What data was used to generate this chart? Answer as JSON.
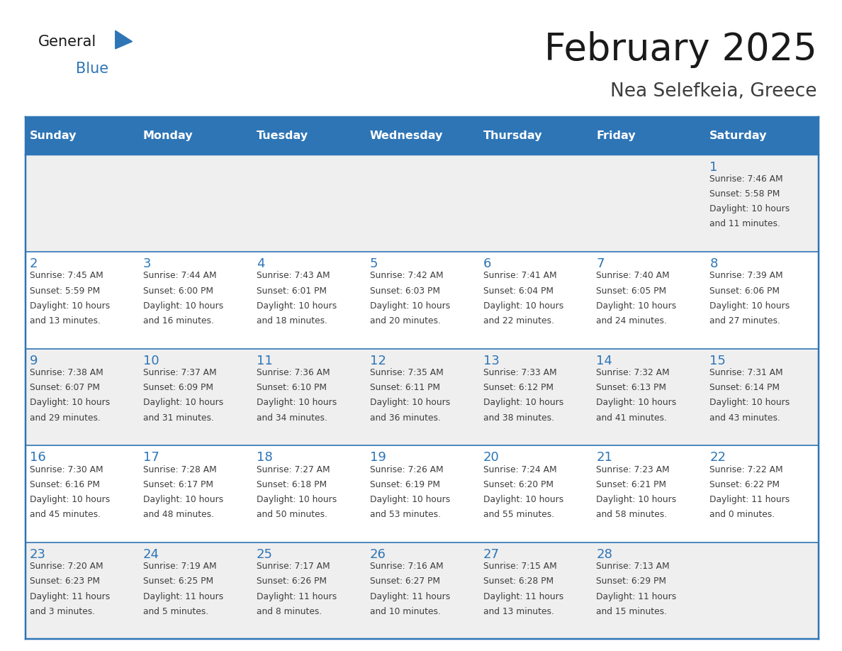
{
  "title": "February 2025",
  "subtitle": "Nea Selefkeia, Greece",
  "days_of_week": [
    "Sunday",
    "Monday",
    "Tuesday",
    "Wednesday",
    "Thursday",
    "Friday",
    "Saturday"
  ],
  "header_bg": "#2E75B6",
  "header_text_color": "#FFFFFF",
  "cell_bg_white": "#FFFFFF",
  "cell_bg_gray": "#EFEFEF",
  "border_color": "#2E75B6",
  "day_number_color": "#2E75B6",
  "info_text_color": "#3D3D3D",
  "title_color": "#1A1A1A",
  "subtitle_color": "#3D3D3D",
  "logo_general_color": "#1A1A1A",
  "logo_blue_color": "#2E75B6",
  "calendar_data": [
    [
      null,
      null,
      null,
      null,
      null,
      null,
      {
        "day": 1,
        "sunrise": "7:46 AM",
        "sunset": "5:58 PM",
        "daylight": "10 hours and 11 minutes."
      }
    ],
    [
      {
        "day": 2,
        "sunrise": "7:45 AM",
        "sunset": "5:59 PM",
        "daylight": "10 hours and 13 minutes."
      },
      {
        "day": 3,
        "sunrise": "7:44 AM",
        "sunset": "6:00 PM",
        "daylight": "10 hours and 16 minutes."
      },
      {
        "day": 4,
        "sunrise": "7:43 AM",
        "sunset": "6:01 PM",
        "daylight": "10 hours and 18 minutes."
      },
      {
        "day": 5,
        "sunrise": "7:42 AM",
        "sunset": "6:03 PM",
        "daylight": "10 hours and 20 minutes."
      },
      {
        "day": 6,
        "sunrise": "7:41 AM",
        "sunset": "6:04 PM",
        "daylight": "10 hours and 22 minutes."
      },
      {
        "day": 7,
        "sunrise": "7:40 AM",
        "sunset": "6:05 PM",
        "daylight": "10 hours and 24 minutes."
      },
      {
        "day": 8,
        "sunrise": "7:39 AM",
        "sunset": "6:06 PM",
        "daylight": "10 hours and 27 minutes."
      }
    ],
    [
      {
        "day": 9,
        "sunrise": "7:38 AM",
        "sunset": "6:07 PM",
        "daylight": "10 hours and 29 minutes."
      },
      {
        "day": 10,
        "sunrise": "7:37 AM",
        "sunset": "6:09 PM",
        "daylight": "10 hours and 31 minutes."
      },
      {
        "day": 11,
        "sunrise": "7:36 AM",
        "sunset": "6:10 PM",
        "daylight": "10 hours and 34 minutes."
      },
      {
        "day": 12,
        "sunrise": "7:35 AM",
        "sunset": "6:11 PM",
        "daylight": "10 hours and 36 minutes."
      },
      {
        "day": 13,
        "sunrise": "7:33 AM",
        "sunset": "6:12 PM",
        "daylight": "10 hours and 38 minutes."
      },
      {
        "day": 14,
        "sunrise": "7:32 AM",
        "sunset": "6:13 PM",
        "daylight": "10 hours and 41 minutes."
      },
      {
        "day": 15,
        "sunrise": "7:31 AM",
        "sunset": "6:14 PM",
        "daylight": "10 hours and 43 minutes."
      }
    ],
    [
      {
        "day": 16,
        "sunrise": "7:30 AM",
        "sunset": "6:16 PM",
        "daylight": "10 hours and 45 minutes."
      },
      {
        "day": 17,
        "sunrise": "7:28 AM",
        "sunset": "6:17 PM",
        "daylight": "10 hours and 48 minutes."
      },
      {
        "day": 18,
        "sunrise": "7:27 AM",
        "sunset": "6:18 PM",
        "daylight": "10 hours and 50 minutes."
      },
      {
        "day": 19,
        "sunrise": "7:26 AM",
        "sunset": "6:19 PM",
        "daylight": "10 hours and 53 minutes."
      },
      {
        "day": 20,
        "sunrise": "7:24 AM",
        "sunset": "6:20 PM",
        "daylight": "10 hours and 55 minutes."
      },
      {
        "day": 21,
        "sunrise": "7:23 AM",
        "sunset": "6:21 PM",
        "daylight": "10 hours and 58 minutes."
      },
      {
        "day": 22,
        "sunrise": "7:22 AM",
        "sunset": "6:22 PM",
        "daylight": "11 hours and 0 minutes."
      }
    ],
    [
      {
        "day": 23,
        "sunrise": "7:20 AM",
        "sunset": "6:23 PM",
        "daylight": "11 hours and 3 minutes."
      },
      {
        "day": 24,
        "sunrise": "7:19 AM",
        "sunset": "6:25 PM",
        "daylight": "11 hours and 5 minutes."
      },
      {
        "day": 25,
        "sunrise": "7:17 AM",
        "sunset": "6:26 PM",
        "daylight": "11 hours and 8 minutes."
      },
      {
        "day": 26,
        "sunrise": "7:16 AM",
        "sunset": "6:27 PM",
        "daylight": "11 hours and 10 minutes."
      },
      {
        "day": 27,
        "sunrise": "7:15 AM",
        "sunset": "6:28 PM",
        "daylight": "11 hours and 13 minutes."
      },
      {
        "day": 28,
        "sunrise": "7:13 AM",
        "sunset": "6:29 PM",
        "daylight": "11 hours and 15 minutes."
      },
      null
    ]
  ],
  "fig_width": 11.88,
  "fig_height": 9.18,
  "dpi": 100
}
